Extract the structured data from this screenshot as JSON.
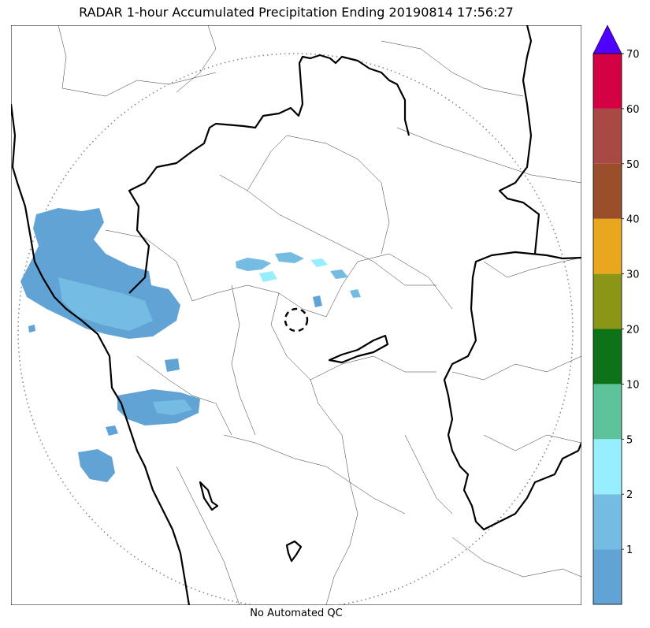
{
  "title": "RADAR 1-hour Accumulated Precipitation Ending 20190814 17:56:27",
  "footer": "No Automated QC",
  "colorbar": {
    "labels": [
      "1",
      "2",
      "5",
      "10",
      "20",
      "30",
      "40",
      "50",
      "60",
      "70"
    ],
    "bins": [
      {
        "color": "#62a3d5",
        "label": "1"
      },
      {
        "color": "#75bce2",
        "label": "2"
      },
      {
        "color": "#96eefe",
        "label": "5"
      },
      {
        "color": "#5dc39b",
        "label": "10"
      },
      {
        "color": "#0e7318",
        "label": "20"
      },
      {
        "color": "#8b9617",
        "label": "30"
      },
      {
        "color": "#e8a71c",
        "label": "40"
      },
      {
        "color": "#9a4e29",
        "label": "50"
      },
      {
        "color": "#a84943",
        "label": "60"
      },
      {
        "color": "#d40145",
        "label": "70"
      }
    ],
    "over_color": "#5000ff"
  },
  "map_colors": {
    "rain_light": "#62a3d5",
    "rain_mid": "#75bce2",
    "rain_cyan": "#96eefe",
    "border": "#000000",
    "range_ring": "#808080"
  }
}
